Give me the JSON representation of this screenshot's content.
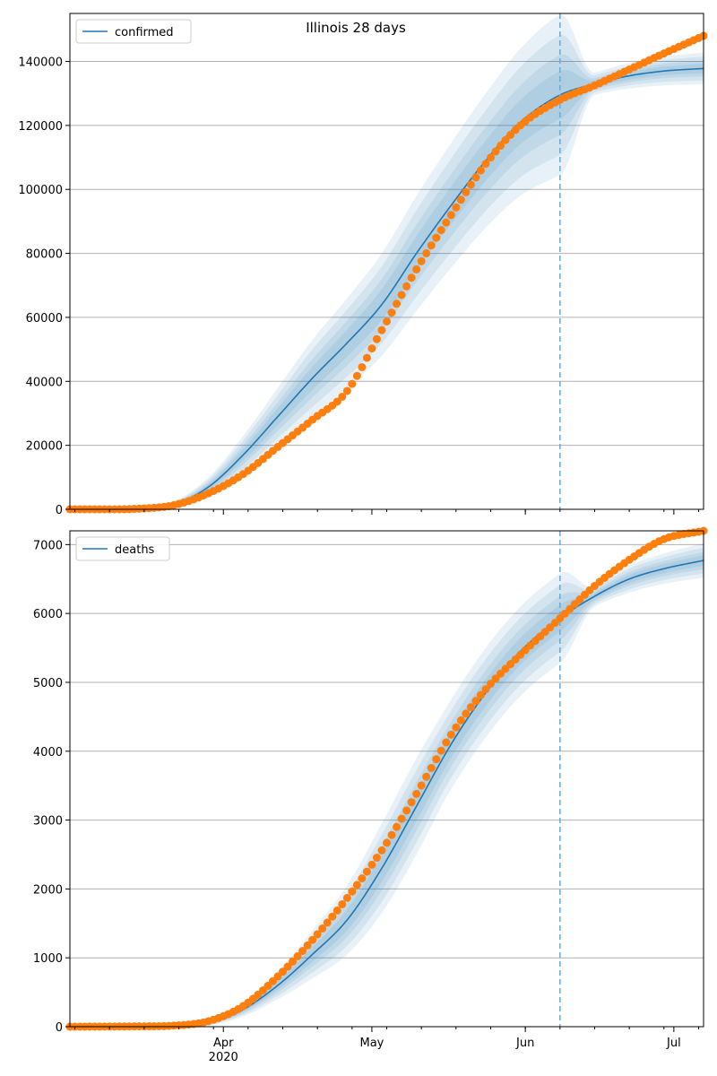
{
  "title": "Illinois 28 days",
  "colors": {
    "model": "#1f77b4",
    "observed": "#ff7f0e",
    "band": "#1f77b4",
    "forecast_line": "#6baed6",
    "grid": "#b0b0b0"
  },
  "x_axis": {
    "start_date": "2020-03-01",
    "end_date": "2020-07-07",
    "month_labels": [
      {
        "date": "2020-04-01",
        "label": "Apr"
      },
      {
        "date": "2020-05-01",
        "label": "May"
      },
      {
        "date": "2020-06-01",
        "label": "Jun"
      },
      {
        "date": "2020-07-01",
        "label": "Jul"
      }
    ],
    "year_label": "2020",
    "year_label_date": "2020-04-01"
  },
  "forecast_start": "2020-06-08",
  "chart_data": [
    {
      "type": "line",
      "legend": "confirmed",
      "legend_position": "top-left",
      "grid": "horizontal",
      "ylim": [
        0,
        155000
      ],
      "yticks": [
        0,
        20000,
        40000,
        60000,
        80000,
        100000,
        120000,
        140000
      ],
      "model": {
        "name": "confirmed",
        "x": [
          "2020-03-01",
          "2020-03-15",
          "2020-03-22",
          "2020-03-29",
          "2020-04-05",
          "2020-04-12",
          "2020-04-19",
          "2020-04-26",
          "2020-05-03",
          "2020-05-10",
          "2020-05-17",
          "2020-05-24",
          "2020-05-31",
          "2020-06-08",
          "2020-06-15",
          "2020-06-22",
          "2020-06-29",
          "2020-07-07"
        ],
        "y": [
          0,
          300,
          1500,
          7000,
          17000,
          29000,
          41000,
          52000,
          64000,
          80000,
          95000,
          109000,
          121000,
          129500,
          133000,
          135500,
          137000,
          137800
        ],
        "band_halfwidth": [
          0,
          200,
          1000,
          3000,
          6000,
          9000,
          12000,
          14000,
          16000,
          18000,
          19500,
          21000,
          23000,
          25000,
          3500,
          4000,
          4500,
          5000
        ]
      },
      "observed": {
        "x": [
          "2020-03-01",
          "2020-03-15",
          "2020-03-22",
          "2020-03-29",
          "2020-04-05",
          "2020-04-12",
          "2020-04-19",
          "2020-04-26",
          "2020-05-03",
          "2020-05-10",
          "2020-05-17",
          "2020-05-24",
          "2020-05-31",
          "2020-06-08",
          "2020-06-15",
          "2020-06-22",
          "2020-06-29",
          "2020-07-07"
        ],
        "y": [
          0,
          200,
          1300,
          5000,
          11000,
          19500,
          28000,
          37000,
          56000,
          75000,
          92000,
          108000,
          120000,
          128000,
          132500,
          137500,
          142500,
          148000
        ]
      }
    },
    {
      "type": "line",
      "legend": "deaths",
      "legend_position": "top-left",
      "grid": "horizontal",
      "ylim": [
        0,
        7200
      ],
      "yticks": [
        0,
        1000,
        2000,
        3000,
        4000,
        5000,
        6000,
        7000
      ],
      "model": {
        "name": "deaths",
        "x": [
          "2020-03-01",
          "2020-03-15",
          "2020-03-22",
          "2020-03-29",
          "2020-04-05",
          "2020-04-12",
          "2020-04-19",
          "2020-04-26",
          "2020-05-03",
          "2020-05-10",
          "2020-05-17",
          "2020-05-24",
          "2020-05-31",
          "2020-06-08",
          "2020-06-15",
          "2020-06-22",
          "2020-06-29",
          "2020-07-07"
        ],
        "y": [
          0,
          0,
          10,
          50,
          250,
          600,
          1050,
          1550,
          2300,
          3200,
          4100,
          4850,
          5450,
          5930,
          6250,
          6500,
          6650,
          6770
        ],
        "band_halfwidth": [
          0,
          0,
          10,
          30,
          100,
          200,
          350,
          500,
          650,
          700,
          650,
          650,
          650,
          650,
          150,
          200,
          220,
          250
        ]
      },
      "observed": {
        "x": [
          "2020-03-01",
          "2020-03-15",
          "2020-03-22",
          "2020-03-29",
          "2020-04-05",
          "2020-04-12",
          "2020-04-19",
          "2020-04-26",
          "2020-05-03",
          "2020-05-10",
          "2020-05-17",
          "2020-05-24",
          "2020-05-31",
          "2020-06-08",
          "2020-06-15",
          "2020-06-22",
          "2020-06-29",
          "2020-07-07"
        ],
        "y": [
          0,
          5,
          15,
          80,
          300,
          730,
          1260,
          1870,
          2560,
          3380,
          4240,
          4900,
          5400,
          5930,
          6400,
          6780,
          7080,
          7200
        ]
      }
    }
  ]
}
